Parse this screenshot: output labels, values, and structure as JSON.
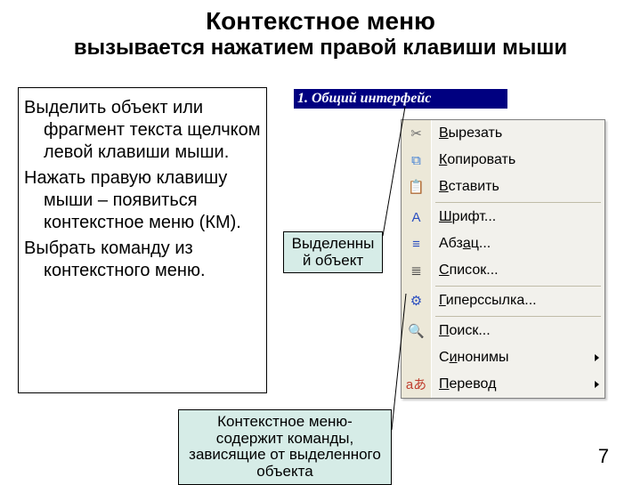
{
  "title": {
    "line1": "Контекстное меню",
    "line2": "вызывается нажатием правой клавиши мыши"
  },
  "instructions": {
    "p1": "Выделить объект или фрагмент текста щелчком левой клавиши мыши.",
    "p2": "Нажать правую клавишу мыши – появиться контекстное меню (КМ).",
    "p3": "Выбрать команду из контекстного меню."
  },
  "selected_bar": "1. Общий интерфейс",
  "callout1": "Выделенны\nй объект",
  "callout2": "Контекстное меню- содержит команды, зависящие от выделенного объекта",
  "page_number": "7",
  "menu": {
    "items": [
      {
        "label": "Вырезать",
        "mnemonic": 0,
        "icon": "✂",
        "icon_color": "#6b6b6b",
        "group": 0
      },
      {
        "label": "Копировать",
        "mnemonic": 0,
        "icon": "⧉",
        "icon_color": "#3a7bd5",
        "group": 0
      },
      {
        "label": "Вставить",
        "mnemonic": 0,
        "icon": "📋",
        "icon_color": "#c09030",
        "group": 0
      },
      {
        "label": "Шрифт...",
        "mnemonic": 0,
        "icon": "A",
        "icon_color": "#2a4ec0",
        "group": 1
      },
      {
        "label": "Абзац...",
        "mnemonic": 3,
        "icon": "≡",
        "icon_color": "#2a4ec0",
        "group": 1
      },
      {
        "label": "Список...",
        "mnemonic": 0,
        "icon": "≣",
        "icon_color": "#404040",
        "group": 1
      },
      {
        "label": "Гиперссылка...",
        "mnemonic": 0,
        "icon": "⚙",
        "icon_color": "#2a4ec0",
        "group": 2
      },
      {
        "label": "Поиск...",
        "mnemonic": 0,
        "icon": "🔍",
        "icon_color": "#505050",
        "group": 3
      },
      {
        "label": "Синонимы",
        "mnemonic": 1,
        "icon": "",
        "icon_color": "#000000",
        "group": 3,
        "submenu": true
      },
      {
        "label": "Перевод",
        "mnemonic": 0,
        "icon": "aあ",
        "icon_color": "#c04030",
        "group": 3,
        "submenu": true
      }
    ],
    "bg": "#f2f1ec",
    "icon_col_bg": "#ece8d8"
  },
  "colors": {
    "callout_bg": "#d6ece7",
    "selected_bg": "#000080",
    "connector": "#000000"
  }
}
